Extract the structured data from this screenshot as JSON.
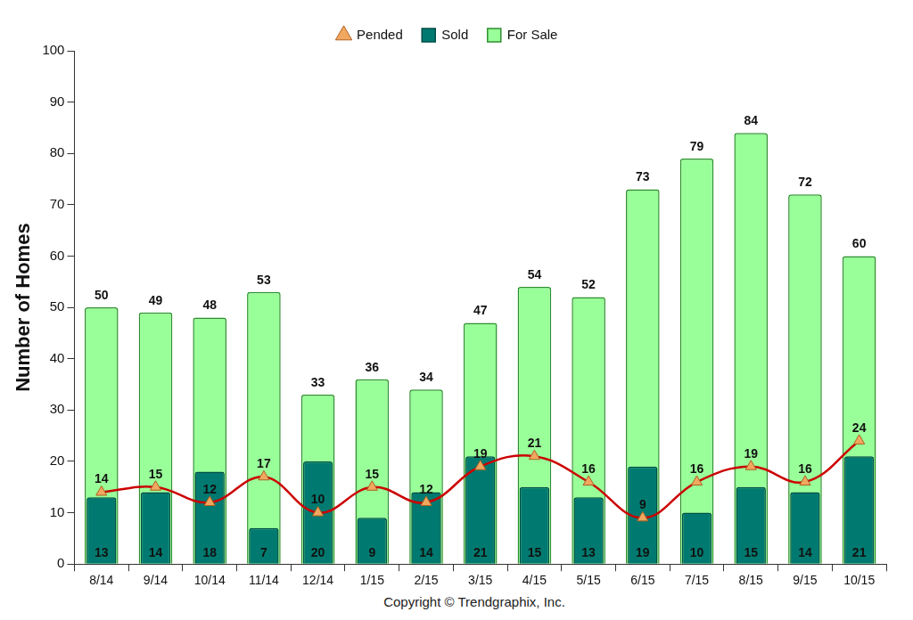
{
  "chart_data": {
    "type": "bar",
    "y_label": "Number of Homes",
    "annotations": [
      "Copyright © Trendgraphix, Inc."
    ],
    "categories": [
      "8/14",
      "9/14",
      "10/14",
      "11/14",
      "12/14",
      "1/15",
      "2/15",
      "3/15",
      "4/15",
      "5/15",
      "6/15",
      "7/15",
      "8/15",
      "9/15",
      "10/15"
    ],
    "series": [
      {
        "name": "For Sale",
        "type": "bar",
        "color": "#99ff99",
        "values": [
          50,
          49,
          48,
          53,
          33,
          36,
          34,
          47,
          54,
          52,
          73,
          79,
          84,
          72,
          60
        ]
      },
      {
        "name": "Sold",
        "type": "bar",
        "color": "#007a70",
        "values": [
          13,
          14,
          18,
          7,
          20,
          9,
          14,
          21,
          15,
          13,
          19,
          10,
          15,
          14,
          21
        ]
      },
      {
        "name": "Pended",
        "type": "line",
        "color": "#cc0000",
        "marker": "triangle",
        "values": [
          14,
          15,
          12,
          17,
          10,
          15,
          12,
          19,
          21,
          16,
          9,
          16,
          19,
          16,
          24
        ]
      }
    ],
    "ylim": [
      0,
      100
    ],
    "yticks": [
      0,
      10,
      20,
      30,
      40,
      50,
      60,
      70,
      80,
      90,
      100
    ],
    "grid": false,
    "legend": "top",
    "data_labels": true
  }
}
